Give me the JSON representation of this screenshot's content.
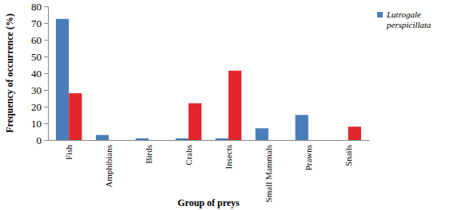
{
  "chart_data": {
    "type": "bar",
    "x_label": "Group of preys",
    "y_label": "Frequency of occurrence (%)",
    "categories": [
      "Fish",
      "Amphibians",
      "Birds",
      "Crabs",
      "Insects",
      "Small Mammals",
      "Prawns",
      "Snails"
    ],
    "series": [
      {
        "name": "Lutrogale perspicillata",
        "color": "#4a7ebb",
        "values": [
          72.5,
          3,
          1,
          1,
          1,
          7,
          15,
          0
        ]
      },
      {
        "color": "#e3262c",
        "values": [
          28,
          0,
          0,
          22,
          41.5,
          0,
          0,
          8
        ]
      }
    ],
    "ylim": [
      0,
      80
    ],
    "yticks": [
      0,
      10,
      20,
      30,
      40,
      50,
      60,
      70,
      80
    ],
    "grid": false,
    "legend": "top-right"
  }
}
